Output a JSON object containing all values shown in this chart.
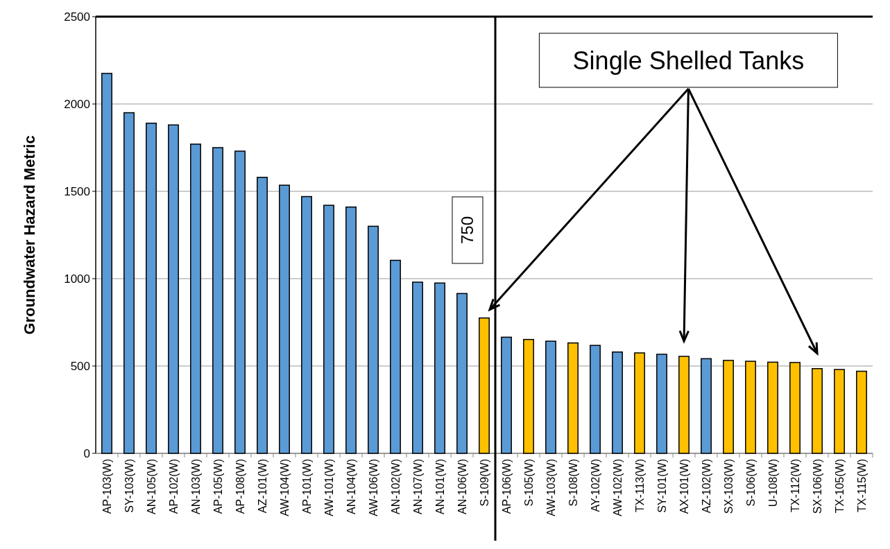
{
  "chart_data": {
    "type": "bar",
    "ylabel": "Groundwater Hazard Metric",
    "categories": [
      "AP-103(W)",
      "SY-103(W)",
      "AN-105(W)",
      "AP-102(W)",
      "AN-103(W)",
      "AP-105(W)",
      "AP-108(W)",
      "AZ-101(W)",
      "AW-104(W)",
      "AP-101(W)",
      "AW-101(W)",
      "AN-104(W)",
      "AW-106(W)",
      "AN-102(W)",
      "AN-107(W)",
      "AN-101(W)",
      "AN-106(W)",
      "S-109(W)",
      "AP-106(W)",
      "S-105(W)",
      "AW-103(W)",
      "S-108(W)",
      "AY-102(W)",
      "AW-102(W)",
      "TX-113(W)",
      "SY-101(W)",
      "AX-101(W)",
      "AZ-102(W)",
      "SX-103(W)",
      "S-106(W)",
      "U-108(W)",
      "TX-112(W)",
      "SX-106(W)",
      "TX-105(W)",
      "TX-115(W)"
    ],
    "values": [
      2175,
      1950,
      1890,
      1880,
      1770,
      1750,
      1730,
      1580,
      1535,
      1470,
      1420,
      1410,
      1300,
      1105,
      980,
      975,
      915,
      775,
      665,
      652,
      642,
      632,
      618,
      580,
      575,
      567,
      555,
      542,
      532,
      527,
      522,
      520,
      485,
      480,
      470
    ],
    "colors": [
      "#5b9bd5",
      "#5b9bd5",
      "#5b9bd5",
      "#5b9bd5",
      "#5b9bd5",
      "#5b9bd5",
      "#5b9bd5",
      "#5b9bd5",
      "#5b9bd5",
      "#5b9bd5",
      "#5b9bd5",
      "#5b9bd5",
      "#5b9bd5",
      "#5b9bd5",
      "#5b9bd5",
      "#5b9bd5",
      "#5b9bd5",
      "#ffc000",
      "#5b9bd5",
      "#ffc000",
      "#5b9bd5",
      "#ffc000",
      "#5b9bd5",
      "#5b9bd5",
      "#ffc000",
      "#5b9bd5",
      "#ffc000",
      "#5b9bd5",
      "#ffc000",
      "#ffc000",
      "#ffc000",
      "#ffc000",
      "#ffc000",
      "#ffc000",
      "#ffc000"
    ],
    "ylim": [
      0,
      2500
    ],
    "yticks": [
      0,
      500,
      1000,
      1500,
      2000,
      2500
    ],
    "grid": "y",
    "ref_lines": [
      {
        "axis": "x",
        "value": "S-109(W)"
      }
    ],
    "annotations": [
      "Single Shelled Tanks",
      "750"
    ]
  }
}
